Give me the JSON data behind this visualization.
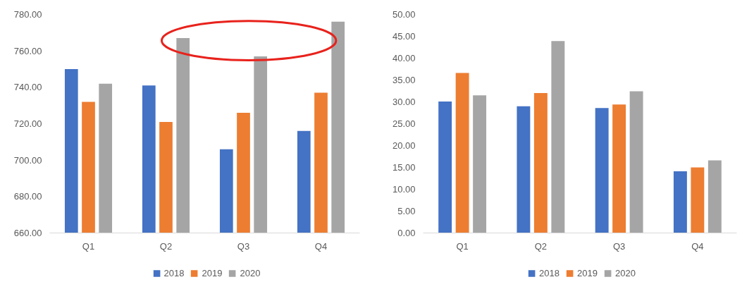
{
  "chart_data": [
    {
      "type": "bar",
      "categories": [
        "Q1",
        "Q2",
        "Q3",
        "Q4"
      ],
      "ylim": [
        660,
        780
      ],
      "yticks": [
        {
          "value": 660,
          "label": "660.00"
        },
        {
          "value": 680,
          "label": "680.00"
        },
        {
          "value": 700,
          "label": "700.00"
        },
        {
          "value": 720,
          "label": "720.00"
        },
        {
          "value": 740,
          "label": "740.00"
        },
        {
          "value": 760,
          "label": "760.00"
        },
        {
          "value": 780,
          "label": "780.00"
        }
      ],
      "grid": false,
      "legend": "bottom",
      "series": [
        {
          "name": "2018",
          "color": "#4472c4",
          "values": [
            750,
            741,
            706,
            716
          ]
        },
        {
          "name": "2019",
          "color": "#ed7d31",
          "values": [
            732,
            721,
            726,
            737
          ]
        },
        {
          "name": "2020",
          "color": "#a5a5a5",
          "values": [
            742,
            767,
            757,
            776
          ]
        }
      ]
    },
    {
      "type": "bar",
      "categories": [
        "Q1",
        "Q2",
        "Q3",
        "Q4"
      ],
      "ylim": [
        0,
        50
      ],
      "yticks": [
        {
          "value": 0,
          "label": "0.00"
        },
        {
          "value": 5,
          "label": "5.00"
        },
        {
          "value": 10,
          "label": "10.00"
        },
        {
          "value": 15,
          "label": "15.00"
        },
        {
          "value": 20,
          "label": "20.00"
        },
        {
          "value": 25,
          "label": "25.00"
        },
        {
          "value": 30,
          "label": "30.00"
        },
        {
          "value": 35,
          "label": "35.00"
        },
        {
          "value": 40,
          "label": "40.00"
        },
        {
          "value": 45,
          "label": "45.00"
        },
        {
          "value": 50,
          "label": "50.00"
        }
      ],
      "grid": false,
      "legend": "bottom",
      "series": [
        {
          "name": "2018",
          "color": "#4472c4",
          "values": [
            30.1,
            29.0,
            28.6,
            14.1
          ]
        },
        {
          "name": "2019",
          "color": "#ed7d31",
          "values": [
            36.6,
            32.0,
            29.4,
            15.0
          ]
        },
        {
          "name": "2020",
          "color": "#a5a5a5",
          "values": [
            31.5,
            43.9,
            32.4,
            16.6
          ]
        }
      ]
    }
  ]
}
